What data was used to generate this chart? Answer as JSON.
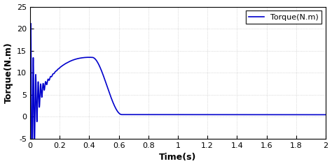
{
  "title": "",
  "xlabel": "Time(s)",
  "ylabel": "Torque(N.m)",
  "xlim": [
    0,
    2
  ],
  "ylim": [
    -5,
    25
  ],
  "xticks": [
    0,
    0.2,
    0.4,
    0.6,
    0.8,
    1.0,
    1.2,
    1.4,
    1.6,
    1.8,
    2.0
  ],
  "yticks": [
    -5,
    0,
    5,
    10,
    15,
    20,
    25
  ],
  "line_color": "#0000CC",
  "line_width": 1.2,
  "legend_label": "Torque(N.m)",
  "background_color": "#ffffff",
  "grid_color": "#b0b0b0",
  "osc_freq": 60,
  "osc_decay": 35,
  "osc_amp": 24,
  "slow_peak_t": 0.4,
  "slow_peak_v": 13.5,
  "slow_decay": 8.0,
  "flat_value": 0.5,
  "decay_start": 0.42,
  "decay_end": 0.62
}
